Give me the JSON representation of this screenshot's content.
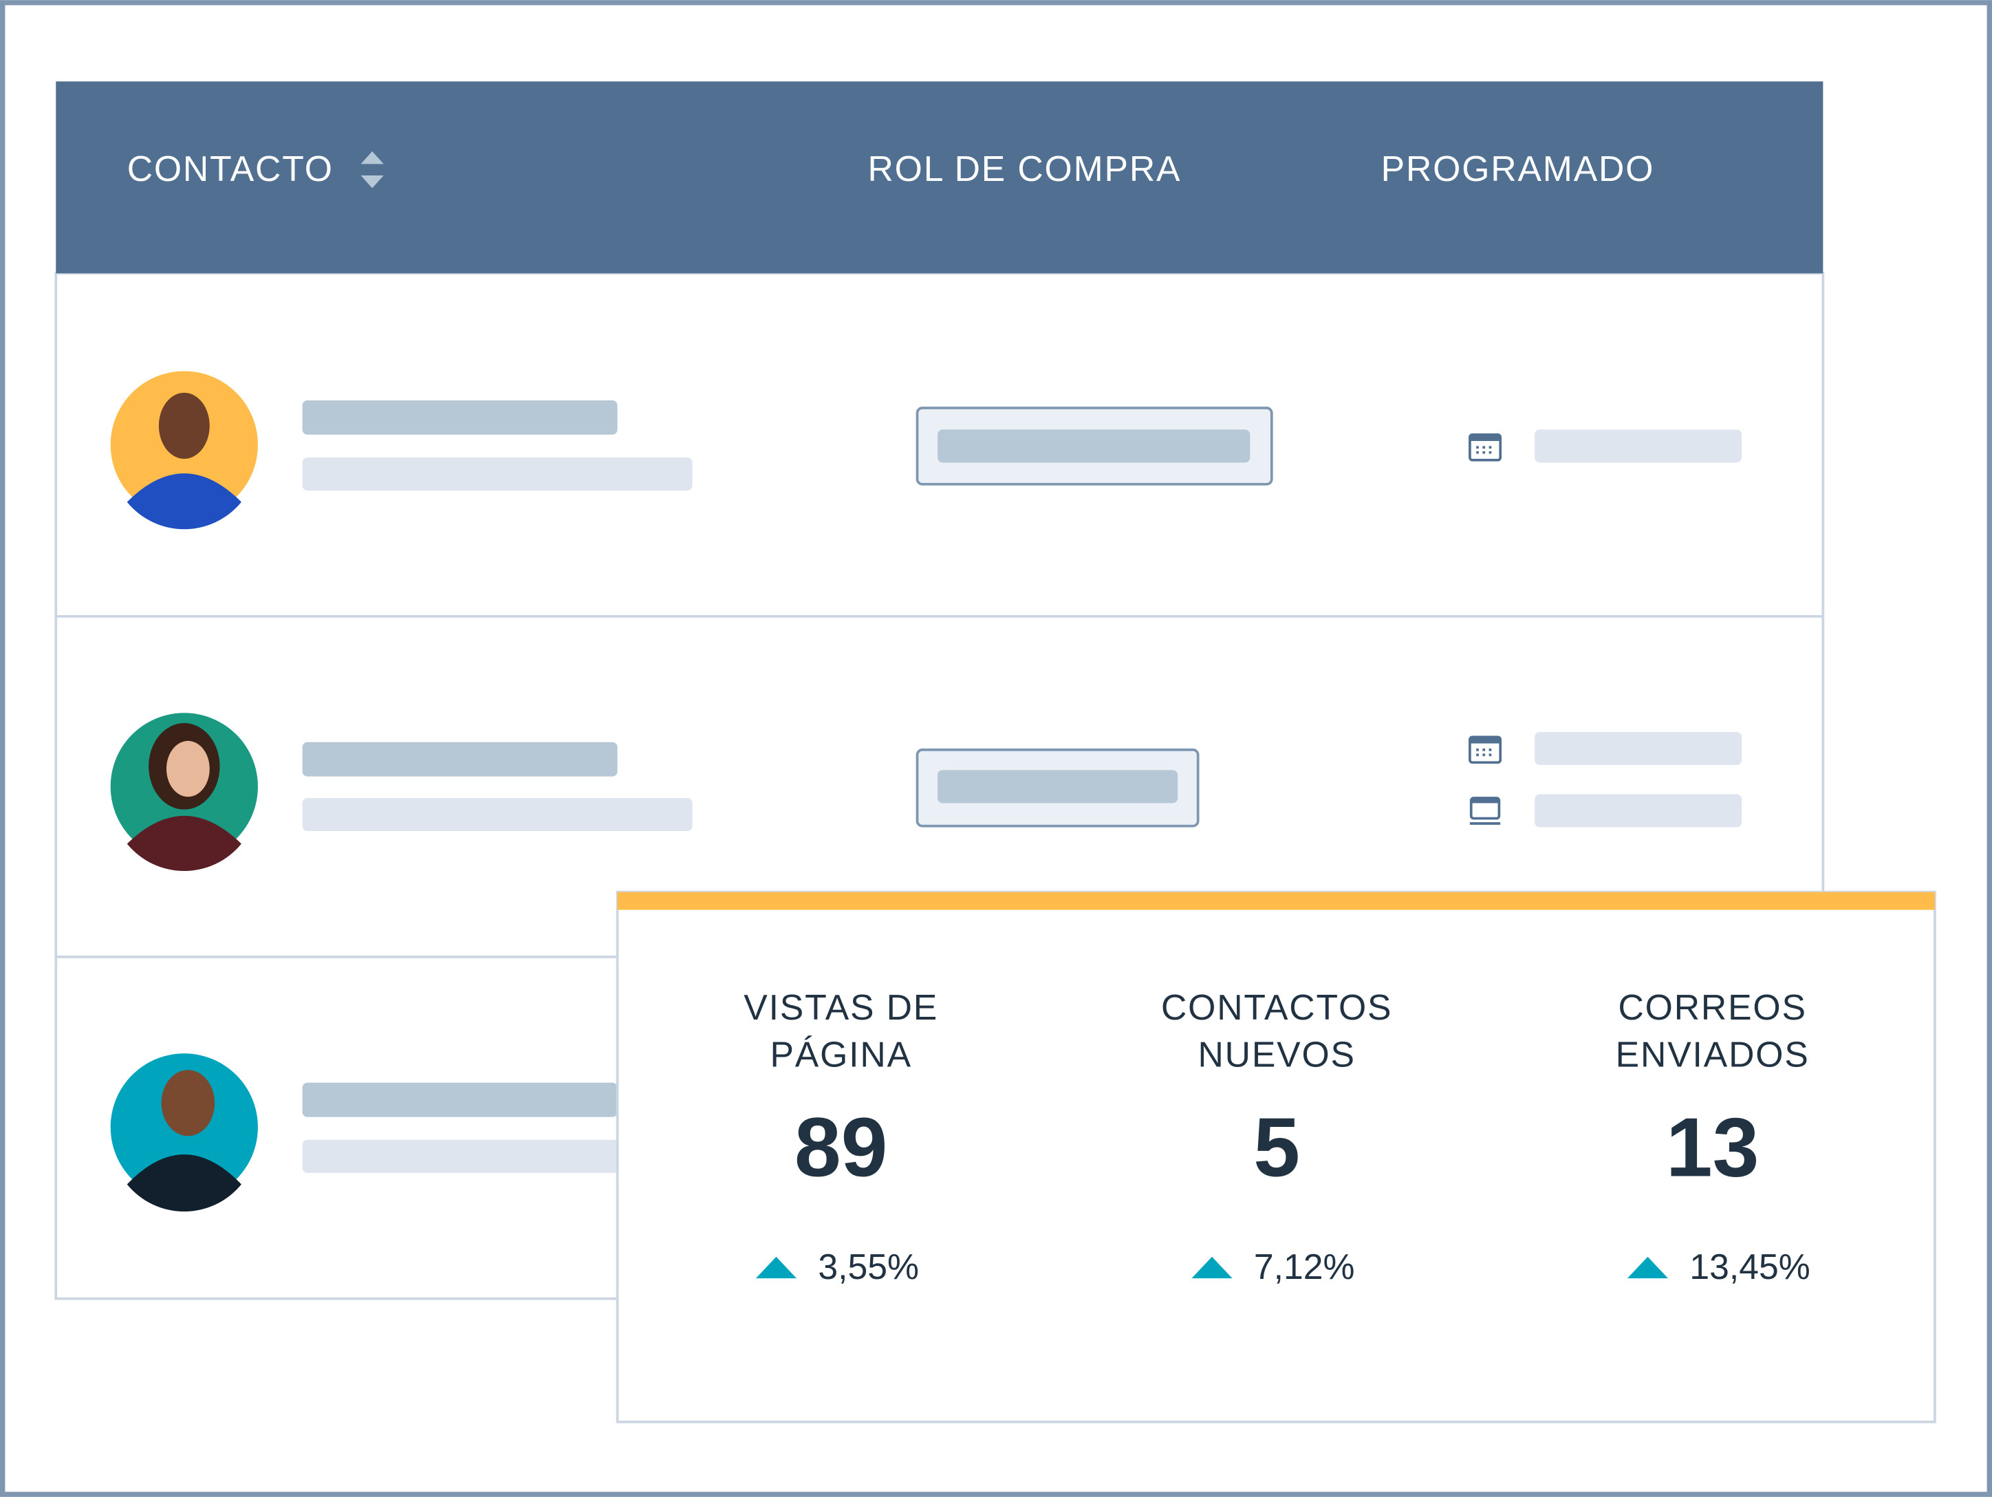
{
  "table": {
    "headers": [
      "CONTACTO",
      "ROL DE COMPRA",
      "PROGRAMADO"
    ]
  },
  "stats": [
    {
      "label_lines": [
        "VISTAS DE",
        "PÁGINA"
      ],
      "value": 89,
      "change": "3,55%"
    },
    {
      "label_lines": [
        "CONTACTOS",
        "NUEVOS"
      ],
      "value": 5,
      "change": "7,12%"
    },
    {
      "label_lines": [
        "CORREOS",
        "ENVIADOS"
      ],
      "value": 13,
      "change": "13,45%"
    }
  ]
}
